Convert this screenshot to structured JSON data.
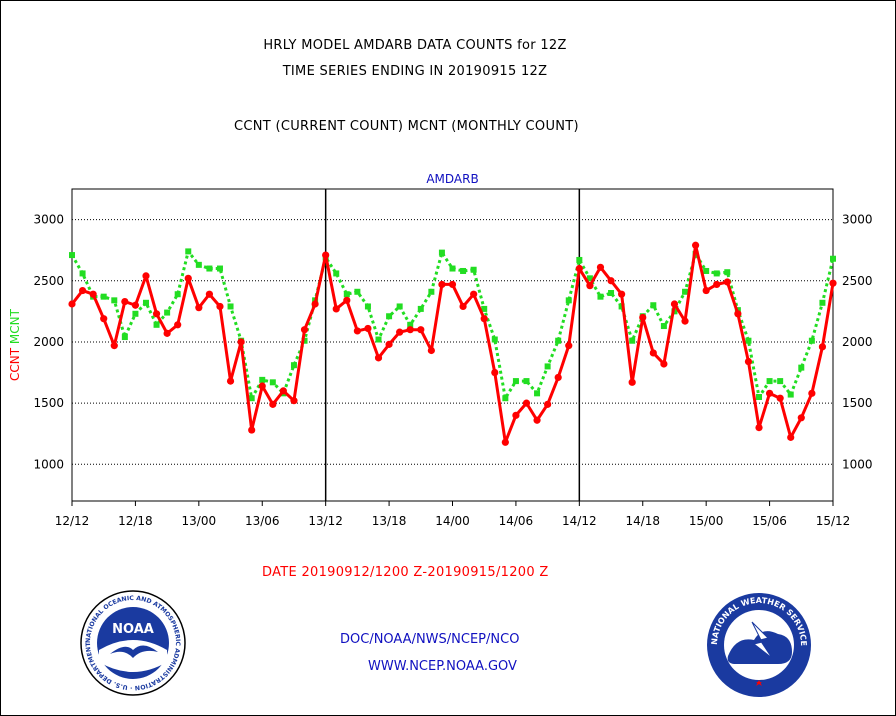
{
  "header": {
    "title_line1": "HRLY MODEL AMDARB DATA COUNTS for 12Z",
    "title_line2": "TIME SERIES ENDING IN 20190915 12Z",
    "subtitle": "CCNT (CURRENT COUNT) MCNT (MONTHLY COUNT)"
  },
  "footer": {
    "date_range": "DATE 20190912/1200 Z-20190915/1200 Z",
    "credit_line1": "DOC/NOAA/NWS/NCEP/NCO",
    "credit_line2": "WWW.NCEP.NOAA.GOV"
  },
  "logos": {
    "left": {
      "name": "noaa-logo",
      "center_text": "NOAA",
      "ring_text": "NATIONAL OCEANIC AND ATMOSPHERIC ADMINISTRATION · U.S. DEPARTMENT OF COMMERCE"
    },
    "right": {
      "name": "nws-logo",
      "ring_text": "NATIONAL WEATHER SERVICE"
    }
  },
  "colors": {
    "ccnt": "#ff0000",
    "mcnt": "#22dd22",
    "plot_title": "#1010c0",
    "credits": "#1010c0"
  },
  "chart_data": {
    "type": "line",
    "title": "AMDARB",
    "ylabel_parts": [
      {
        "text": "CCNT",
        "color": "#ff0000"
      },
      {
        "text": "MCNT",
        "color": "#22dd22"
      }
    ],
    "xlabel": "DATE 20190912/1200 Z-20190915/1200 Z",
    "x_tick_labels": [
      "12/12",
      "12/18",
      "13/00",
      "13/06",
      "13/12",
      "13/18",
      "14/00",
      "14/06",
      "14/12",
      "14/18",
      "15/00",
      "15/06",
      "15/12"
    ],
    "x_tick_hours": [
      0,
      6,
      12,
      18,
      24,
      30,
      36,
      42,
      48,
      54,
      60,
      66,
      72
    ],
    "xlim": [
      0,
      72
    ],
    "ylim": [
      700,
      3250
    ],
    "y_ticks": [
      1000,
      1500,
      2000,
      2500,
      3000
    ],
    "grid_y": true,
    "day_separators": [
      24,
      48
    ],
    "series": [
      {
        "name": "CCNT",
        "color": "#ff0000",
        "style": "solid",
        "values": [
          2310,
          2420,
          2390,
          2190,
          1970,
          2330,
          2300,
          2540,
          2230,
          2070,
          2140,
          2520,
          2280,
          2390,
          2290,
          1680,
          2000,
          1280,
          1640,
          1490,
          1600,
          1520,
          2100,
          2310,
          2710,
          2270,
          2340,
          2090,
          2110,
          1870,
          1980,
          2080,
          2100,
          2100,
          1930,
          2470,
          2470,
          2290,
          2390,
          2190,
          1750,
          1180,
          1400,
          1500,
          1360,
          1490,
          1710,
          1970,
          2600,
          2460,
          2610,
          2500,
          2390,
          1670,
          2200,
          1910,
          1820,
          2310,
          2170,
          2790,
          2420,
          2470,
          2490,
          2230,
          1840,
          1300,
          1580,
          1540,
          1220,
          1380,
          1580,
          1960,
          2480
        ]
      },
      {
        "name": "MCNT",
        "color": "#22dd22",
        "style": "dotted",
        "values": [
          2710,
          2560,
          2370,
          2370,
          2340,
          2040,
          2230,
          2320,
          2140,
          2240,
          2390,
          2740,
          2630,
          2600,
          2600,
          2290,
          2010,
          1540,
          1690,
          1670,
          1580,
          1810,
          2010,
          2340,
          2690,
          2560,
          2390,
          2410,
          2290,
          2020,
          2210,
          2290,
          2140,
          2270,
          2410,
          2730,
          2600,
          2580,
          2590,
          2270,
          2020,
          1540,
          1680,
          1680,
          1580,
          1800,
          2010,
          2340,
          2670,
          2520,
          2370,
          2400,
          2290,
          2010,
          2210,
          2300,
          2130,
          2250,
          2410,
          2720,
          2580,
          2560,
          2570,
          2260,
          2010,
          1550,
          1680,
          1680,
          1570,
          1790,
          2010,
          2320,
          2680
        ]
      }
    ]
  }
}
